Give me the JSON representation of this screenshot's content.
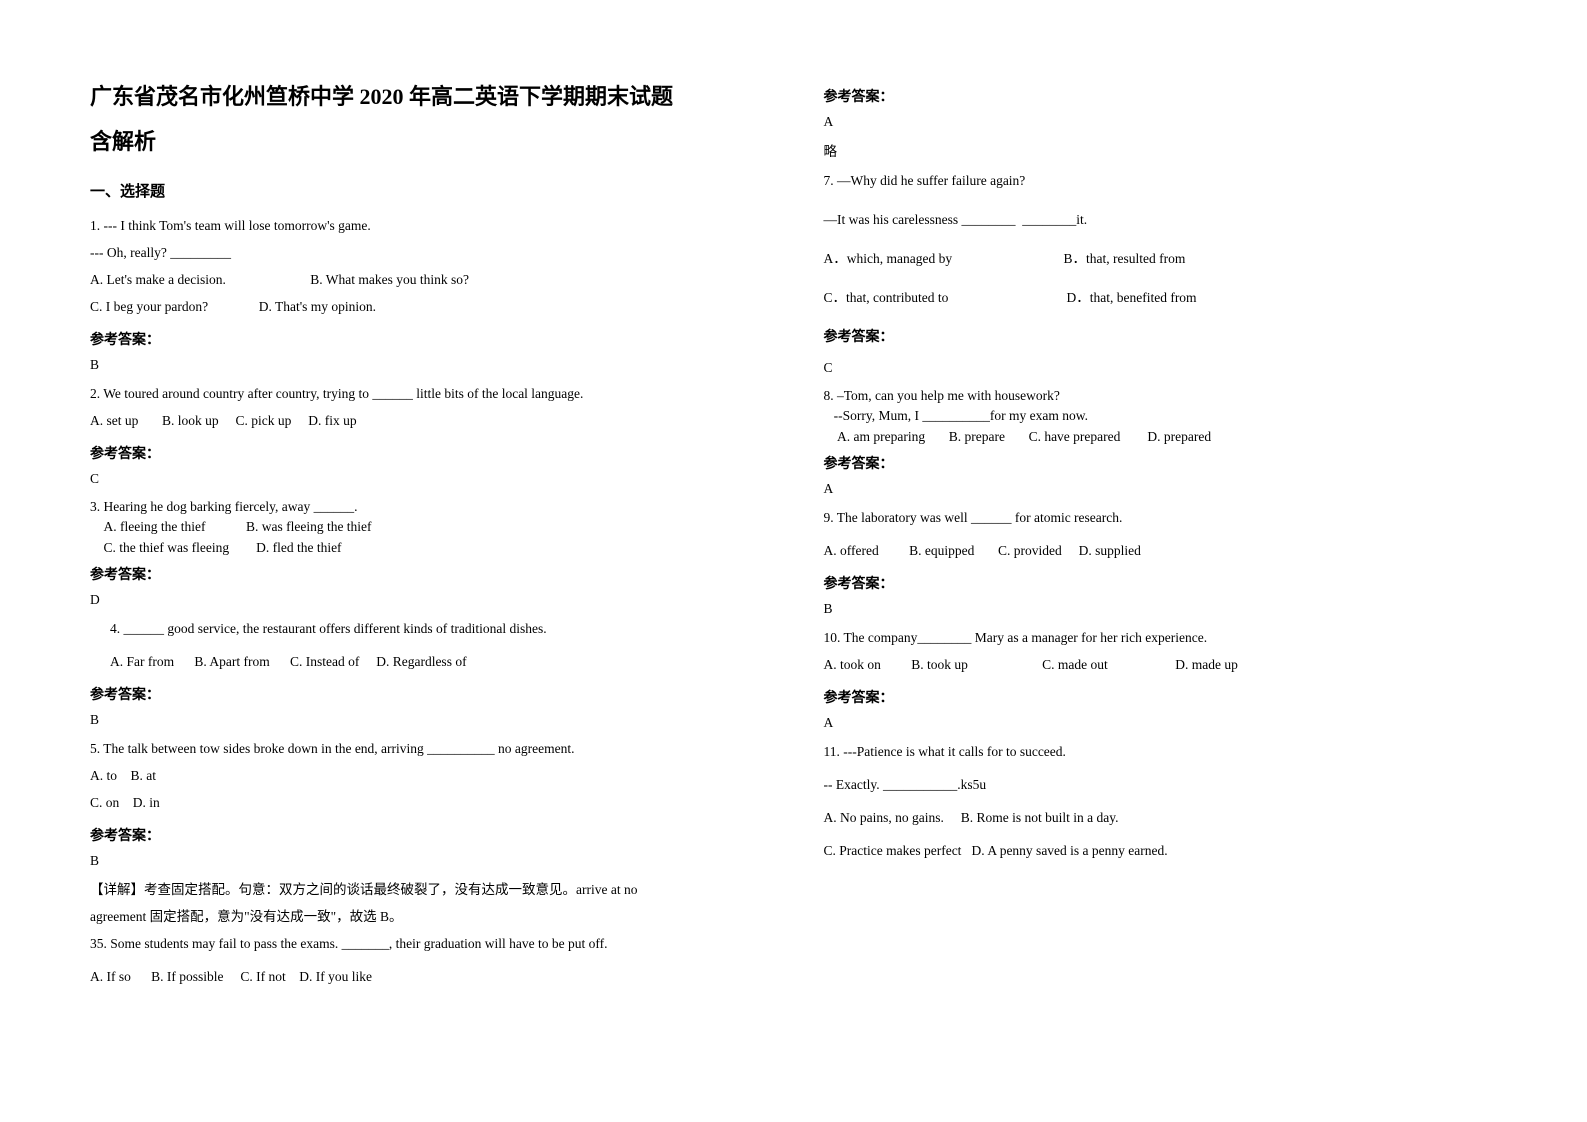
{
  "title_line1": "广东省茂名市化州笪桥中学 2020 年高二英语下学期期末试题",
  "title_line2": "含解析",
  "section1": "一、选择题",
  "q1": {
    "l1": "1. --- I think Tom's team will lose tomorrow's game.",
    "l2": "--- Oh, really? _________",
    "l3": "A. Let's make a decision.                         B. What makes you think so?",
    "l4": "C. I beg your pardon?               D. That's my opinion.",
    "ans_label": "参考答案：",
    "ans": "B"
  },
  "q2": {
    "l1": "2. We toured around country after country, trying to ______ little bits of the local language.",
    "l2": "A. set up       B. look up     C. pick up     D. fix up",
    "ans_label": "参考答案：",
    "ans": "C"
  },
  "q3": {
    "l1": "3. Hearing he dog barking fiercely, away ______.",
    "l2": "    A. fleeing the thief            B. was fleeing the thief",
    "l3": "    C. the thief was fleeing        D. fled the thief",
    "ans_label": "参考答案：",
    "ans": "D"
  },
  "q4": {
    "l1": "4. ______ good service, the restaurant offers different kinds of traditional dishes.",
    "l2": "A. Far from      B. Apart from      C. Instead of     D. Regardless of",
    "ans_label": "参考答案：",
    "ans": "B"
  },
  "q5": {
    "l1": "5. The talk between tow sides broke down in the end, arriving __________ no agreement.",
    "l2": "A. to    B. at",
    "l3": "C. on    D. in",
    "ans_label": "参考答案：",
    "ans": "B",
    "explain1": "【详解】考查固定搭配。句意：双方之间的谈话最终破裂了，没有达成一致意见。arrive at no",
    "explain2": "agreement 固定搭配，意为\"没有达成一致\"，故选 B。"
  },
  "q6": {
    "l1": "35. Some students may fail to pass the exams. _______, their graduation will have to be put off.",
    "l2": "A. If so      B. If possible     C. If not    D. If you like",
    "ans_label": "参考答案：",
    "ans": "A",
    "omit": "略"
  },
  "q7": {
    "l1": "7. —Why did he suffer failure again?",
    "l2": "—It was his carelessness ________  ________it.",
    "l3": "A．which, managed by                                 B．that, resulted from",
    "l4": "C．that, contributed to                                   D．that, benefited from",
    "ans_label": "参考答案：",
    "ans": "C"
  },
  "q8": {
    "l1": "8. –Tom, can you help me with housework?",
    "l2": "   --Sorry, Mum, I __________for my exam now.",
    "l3": "    A. am preparing       B. prepare       C. have prepared        D. prepared",
    "ans_label": "参考答案：",
    "ans": "A"
  },
  "q9": {
    "l1": "9. The laboratory was well ______ for atomic research.",
    "l2": "A. offered         B. equipped       C. provided     D. supplied",
    "ans_label": "参考答案：",
    "ans": "B"
  },
  "q10": {
    "l1": "10. The company________ Mary as a manager for her rich experience.",
    "l2": "A. took on         B. took up                      C. made out                    D. made up",
    "ans_label": "参考答案：",
    "ans": "A"
  },
  "q11": {
    "l1": "11. ---Patience is what it calls for to succeed.",
    "l2": "-- Exactly. ___________.ks5u",
    "l3": "A. No pains, no gains.     B. Rome is not built in a day.",
    "l4": "C. Practice makes perfect   D. A penny saved is a penny earned."
  }
}
